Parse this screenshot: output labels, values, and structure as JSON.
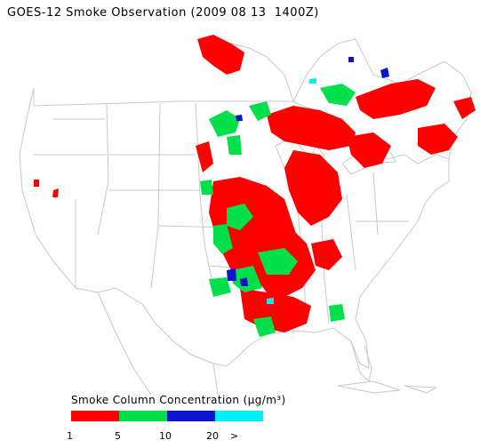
{
  "title": "GOES-12 Smoke Observation (2009 08 13  1400Z)",
  "map": {
    "region": "Continental United States and southern Canada",
    "basemap_color": "#c8c8c8"
  },
  "legend": {
    "title": "Smoke Column Concentration (μg/m³)",
    "bins": [
      {
        "color": "#ff0000",
        "from": "1",
        "to": "5"
      },
      {
        "color": "#00e04a",
        "from": "5",
        "to": "10"
      },
      {
        "color": "#0a14c8",
        "from": "10",
        "to": "20"
      },
      {
        "color": "#00f0ff",
        "from": "20",
        "to": ">"
      }
    ],
    "tick_labels": [
      "1",
      "5",
      "10",
      "20",
      ">"
    ]
  }
}
